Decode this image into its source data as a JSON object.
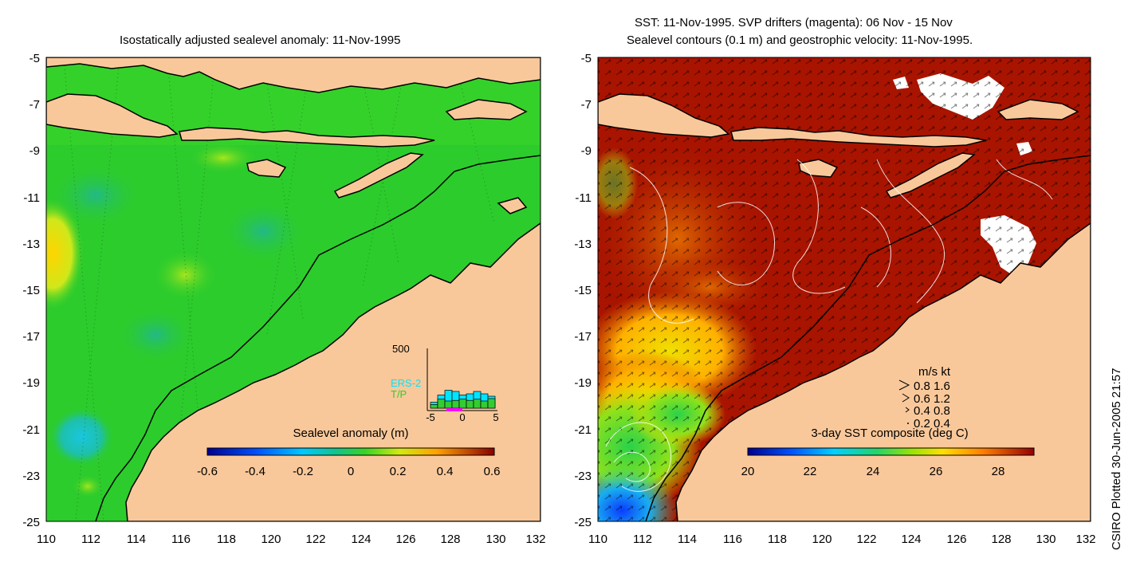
{
  "left_map": {
    "title": "Isostatically adjusted sealevel anomaly: 11-Nov-1995",
    "lat_ticks": [
      "-5",
      "-7",
      "-9",
      "-11",
      "-13",
      "-15",
      "-17",
      "-19",
      "-21",
      "-23",
      "-25"
    ],
    "lon_ticks": [
      "110",
      "112",
      "114",
      "116",
      "118",
      "120",
      "122",
      "124",
      "126",
      "128",
      "130",
      "132"
    ],
    "colorbar": {
      "label": "Sealevel anomaly (m)",
      "ticks": [
        "-0.6",
        "-0.4",
        "-0.2",
        "0",
        "0.2",
        "0.4",
        "0.6"
      ],
      "range": [
        -0.6,
        0.6
      ]
    },
    "inset": {
      "ymax_label": "500",
      "series_labels": [
        "ERS-2",
        "T/P"
      ],
      "series_colors": [
        "#00e5ff",
        "#33cc33"
      ],
      "x_ticks": [
        "-5",
        "0",
        "5"
      ],
      "ers2_values": [
        0.1,
        0.22,
        0.3,
        0.28,
        0.22,
        0.24,
        0.28,
        0.24,
        0.2
      ],
      "tp_values": [
        0.06,
        0.15,
        0.12,
        0.13,
        0.15,
        0.13,
        0.15,
        0.12,
        0.16
      ]
    }
  },
  "right_map": {
    "title_line1": "SST: 11-Nov-1995. SVP drifters (magenta): 06 Nov - 15 Nov",
    "title_line2": "Sealevel contours (0.1 m) and geostrophic velocity: 11-Nov-1995.",
    "lat_ticks": [
      "-5",
      "-7",
      "-9",
      "-11",
      "-13",
      "-15",
      "-17",
      "-19",
      "-21",
      "-23",
      "-25"
    ],
    "lon_ticks": [
      "110",
      "112",
      "114",
      "116",
      "118",
      "120",
      "122",
      "124",
      "126",
      "128",
      "130",
      "132"
    ],
    "colorbar": {
      "label": "3-day SST composite (deg C)",
      "ticks": [
        "20",
        "22",
        "24",
        "26",
        "28"
      ],
      "range": [
        20,
        29.5
      ]
    },
    "velocity_legend": {
      "header": "m/s  kt",
      "rows": [
        "0.8  1.6",
        "0.6  1.2",
        "0.4  0.8",
        "0.2  0.4"
      ]
    }
  },
  "credit": "CSIRO Plotted 30-Jun-2005 21:57",
  "colors": {
    "land": "#f9c89a",
    "coast": "#000000",
    "sla_ocean": "#2ccc2c",
    "sst_warm": "#a81400"
  }
}
